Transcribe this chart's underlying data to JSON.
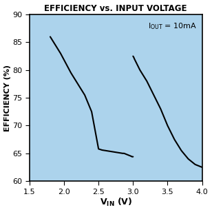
{
  "title": "EFFICIENCY vs. INPUT VOLTAGE",
  "ylabel": "EFFICIENCY (%)",
  "xlim": [
    1.5,
    4.0
  ],
  "ylim": [
    60,
    90
  ],
  "xticks": [
    1.5,
    2.0,
    2.5,
    3.0,
    3.5,
    4.0
  ],
  "xtick_labels": [
    "1.5",
    "2.0",
    "2.5",
    "3.0",
    "3.5",
    "4.0"
  ],
  "yticks": [
    60,
    65,
    70,
    75,
    80,
    85,
    90
  ],
  "ytick_labels": [
    "60",
    "65",
    "70",
    "75",
    "80",
    "85",
    "90"
  ],
  "background_color": "#acd3ec",
  "line_color": "#000000",
  "outer_bg": "#ffffff",
  "x_data": [
    1.8,
    1.95,
    2.1,
    2.2,
    2.3,
    2.4,
    2.5,
    2.55,
    2.6,
    2.65,
    2.7,
    2.75,
    2.8,
    2.85,
    2.87,
    2.89,
    2.91,
    2.93,
    2.95,
    2.97,
    2.985,
    2.99,
    3.0,
    3.0,
    3.005,
    3.01,
    3.02,
    3.04,
    3.06,
    3.08,
    3.1,
    3.15,
    3.2,
    3.3,
    3.4,
    3.5,
    3.6,
    3.7,
    3.8,
    3.9,
    4.0
  ],
  "y_data": [
    86.0,
    83.0,
    79.5,
    77.5,
    75.5,
    72.5,
    65.8,
    65.6,
    65.5,
    65.4,
    65.3,
    65.2,
    65.1,
    65.0,
    65.0,
    64.9,
    64.8,
    64.7,
    64.6,
    64.5,
    64.4,
    64.4,
    64.4,
    82.5,
    82.4,
    82.3,
    82.0,
    81.5,
    81.0,
    80.5,
    80.0,
    79.0,
    78.0,
    75.5,
    73.0,
    70.0,
    67.5,
    65.5,
    64.0,
    63.0,
    62.5
  ],
  "ann_text_main": "I",
  "ann_sub": "OUT",
  "ann_rest": " = 10mA"
}
